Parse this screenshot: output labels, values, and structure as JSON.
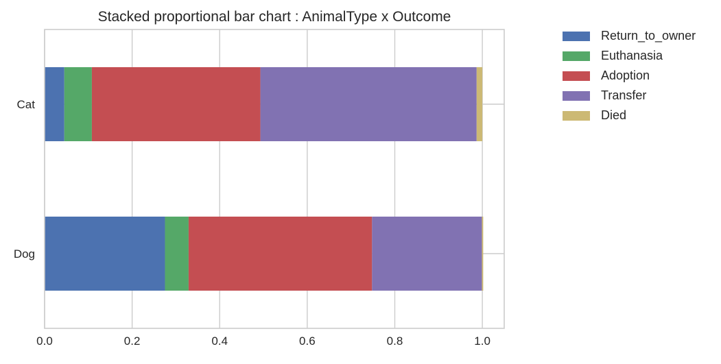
{
  "chart_data": {
    "type": "bar",
    "orientation": "horizontal",
    "stacked": true,
    "title": "Stacked proportional bar chart : AnimalType x Outcome",
    "categories": [
      "Cat",
      "Dog"
    ],
    "series": [
      {
        "name": "Return_to_owner",
        "color": "#4c72b0",
        "values": [
          0.045,
          0.275
        ]
      },
      {
        "name": "Euthanasia",
        "color": "#55a868",
        "values": [
          0.063,
          0.054
        ]
      },
      {
        "name": "Adoption",
        "color": "#c44e52",
        "values": [
          0.385,
          0.419
        ]
      },
      {
        "name": "Transfer",
        "color": "#8172b2",
        "values": [
          0.494,
          0.251
        ]
      },
      {
        "name": "Died",
        "color": "#ccb974",
        "values": [
          0.013,
          0.003
        ]
      }
    ],
    "xlim": [
      0.0,
      1.05
    ],
    "xticks": [
      "0.0",
      "0.2",
      "0.4",
      "0.6",
      "0.8",
      "1.0"
    ],
    "xlabel": "",
    "ylabel": "",
    "grid": true,
    "legend_position": "outside-right"
  }
}
